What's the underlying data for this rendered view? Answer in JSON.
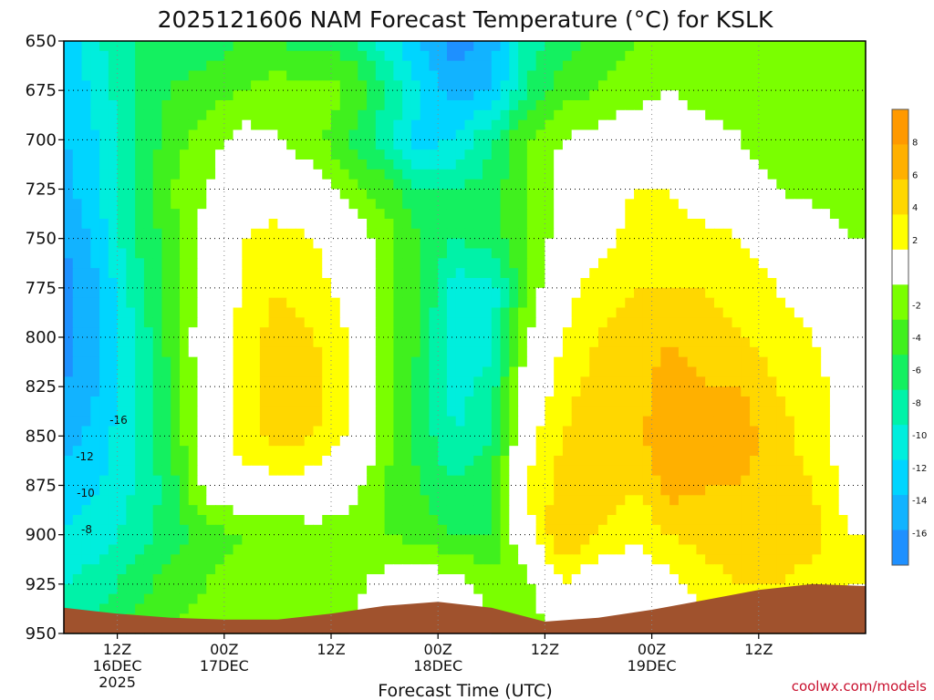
{
  "title": "2025121606 NAM Forecast Temperature (°C) for KSLK",
  "credit": "coolwx.com/models",
  "chart_data": {
    "type": "heatmap",
    "title": "2025121606 NAM Forecast Temperature (°C) for KSLK",
    "xlabel": "Forecast Time (UTC)",
    "ylabel": "",
    "y_scale": "pressure (hPa), inverted",
    "ylim": [
      950,
      650
    ],
    "y_ticks": [
      650,
      675,
      700,
      725,
      750,
      775,
      800,
      825,
      850,
      875,
      900,
      925,
      950
    ],
    "x_hours_from_run": [
      0,
      90
    ],
    "x_ticks": [
      {
        "hour": 6,
        "line1": "12Z",
        "line2": "16DEC",
        "line3": "2025"
      },
      {
        "hour": 18,
        "line1": "00Z",
        "line2": "17DEC",
        "line3": ""
      },
      {
        "hour": 30,
        "line1": "12Z",
        "line2": "",
        "line3": ""
      },
      {
        "hour": 42,
        "line1": "00Z",
        "line2": "18DEC",
        "line3": ""
      },
      {
        "hour": 54,
        "line1": "12Z",
        "line2": "",
        "line3": ""
      },
      {
        "hour": 66,
        "line1": "00Z",
        "line2": "19DEC",
        "line3": ""
      },
      {
        "hour": 78,
        "line1": "12Z",
        "line2": "",
        "line3": ""
      }
    ],
    "grid": true,
    "legend": "right colorbar",
    "colorbar": {
      "boundaries": [
        -18,
        -16,
        -14,
        -12,
        -10,
        -8,
        -6,
        -4,
        -2,
        2,
        4,
        6,
        8,
        10
      ],
      "labels": [
        8,
        6,
        4,
        2,
        -2,
        -4,
        -6,
        -8,
        -10,
        -12,
        -14,
        -16
      ],
      "colors": [
        "#1e90ff",
        "#12b3ff",
        "#00d5ff",
        "#00eedd",
        "#00f2a8",
        "#14f060",
        "#40f01e",
        "#7aff00",
        "#ffffff",
        "#ffff00",
        "#ffd700",
        "#ffb000",
        "#ff9900"
      ]
    },
    "grid_hours": [
      0,
      4,
      8,
      12,
      16,
      20,
      24,
      28,
      32,
      36,
      40,
      44,
      48,
      52,
      56,
      60,
      64,
      68,
      72,
      76,
      80,
      84,
      88
    ],
    "grid_levels": [
      650,
      675,
      700,
      725,
      750,
      775,
      800,
      825,
      850,
      875,
      900,
      925,
      950
    ],
    "temperature": [
      [
        -14,
        -10,
        -8,
        -7,
        -7,
        -6,
        -6,
        -7,
        -7,
        -11,
        -14,
        -17,
        -15,
        -9,
        -7,
        -5,
        -4,
        -3,
        -3,
        -3,
        -4,
        -4,
        -4
      ],
      [
        -14,
        -11,
        -8,
        -6,
        -5,
        -4,
        -3,
        -3,
        -4,
        -8,
        -12,
        -15,
        -14,
        -8,
        -5,
        -4,
        -3,
        -2,
        -3,
        -3,
        -3,
        -4,
        -4
      ],
      [
        -14,
        -12,
        -8,
        -5,
        -3,
        -1,
        -2,
        -3,
        -6,
        -9,
        -13,
        -12,
        -8,
        -4,
        -2,
        -1,
        0,
        0,
        -1,
        -2,
        -3,
        -4,
        -4
      ],
      [
        -15,
        -12,
        -8,
        -4,
        -2,
        0,
        0,
        -1,
        -3,
        -5,
        -8,
        -8,
        -7,
        -4,
        -1,
        0,
        2,
        2,
        0,
        -1,
        -2,
        -3,
        -3
      ],
      [
        -16,
        -13,
        -8,
        -5,
        -1,
        2,
        3,
        2,
        0,
        -3,
        -6,
        -8,
        -7,
        -4,
        -1,
        1,
        3,
        3,
        3,
        2,
        1,
        0,
        -2
      ],
      [
        -17,
        -14,
        -9,
        -5,
        -1,
        2,
        4,
        3,
        1,
        -3,
        -6,
        -11,
        -11,
        -4,
        1,
        3,
        4,
        4,
        4,
        3,
        2,
        1,
        -1
      ],
      [
        -17,
        -14,
        -10,
        -5,
        0,
        3,
        5,
        4,
        2,
        -3,
        -6,
        -12,
        -11,
        -2,
        2,
        4,
        5,
        6,
        5,
        4,
        3,
        2,
        0
      ],
      [
        -16,
        -14,
        -10,
        -6,
        0,
        3,
        5,
        5,
        2,
        -3,
        -7,
        -11,
        -9,
        0,
        3,
        5,
        5,
        7,
        6,
        6,
        4,
        3,
        1
      ],
      [
        -15,
        -13,
        -10,
        -6,
        0,
        3,
        5,
        4,
        2,
        -3,
        -7,
        -10,
        -8,
        1,
        4,
        6,
        5,
        8,
        6,
        7,
        5,
        3,
        1
      ],
      [
        -13,
        -12,
        -10,
        -7,
        -1,
        1,
        1,
        1,
        -1,
        -4,
        -6,
        -8,
        -6,
        2,
        5,
        6,
        4,
        7,
        6,
        6,
        5,
        4,
        1
      ],
      [
        -12,
        -11,
        -9,
        -7,
        -5,
        -4,
        -4,
        -3,
        -3,
        -4,
        -5,
        -6,
        -6,
        1,
        6,
        4,
        2,
        4,
        5,
        6,
        6,
        5,
        2
      ],
      [
        -10,
        -9,
        -7,
        -5,
        -4,
        -3,
        -2,
        -3,
        -3,
        -1,
        0,
        -1,
        -3,
        -3,
        2,
        0,
        1,
        1,
        3,
        4,
        4,
        3,
        2
      ],
      [
        -8,
        -7,
        -5,
        -4,
        -3,
        -2,
        -2,
        -2,
        -2,
        0,
        1,
        0,
        -2,
        -4,
        -1,
        0,
        0,
        0,
        1,
        2,
        2,
        2,
        1
      ]
    ],
    "contour_labels": [
      {
        "x": 40,
        "y": 1,
        "text": "-16"
      },
      {
        "x": 3,
        "y": 2,
        "text": "-12"
      },
      {
        "x": 4,
        "y": 3,
        "text": "-10"
      },
      {
        "x": 5,
        "y": 4,
        "text": "-8"
      }
    ],
    "terrain": {
      "color": "#a0522d",
      "hours": [
        0,
        6,
        12,
        18,
        24,
        30,
        36,
        42,
        48,
        54,
        60,
        66,
        72,
        78,
        84,
        90
      ],
      "levels": [
        937,
        940,
        942,
        943,
        943,
        940,
        936,
        934,
        937,
        944,
        942,
        938,
        933,
        928,
        925,
        926
      ]
    }
  }
}
